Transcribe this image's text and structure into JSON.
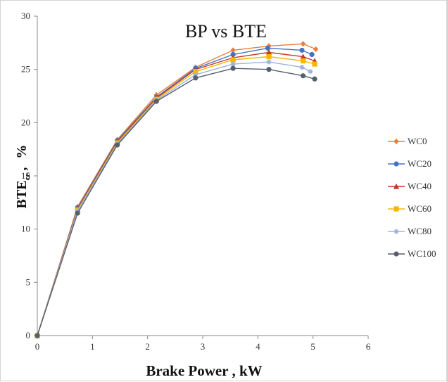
{
  "chart_data": {
    "type": "line",
    "title": "BP vs BTE",
    "xlabel": "Brake Power , kW",
    "ylabel_main": "BTE",
    "ylabel_sub": "ce",
    "ylabel_unit": "%",
    "xlim": [
      0,
      6
    ],
    "ylim": [
      0,
      30
    ],
    "xticks": [
      "0",
      "1",
      "2",
      "3",
      "4",
      "5",
      "6"
    ],
    "yticks": [
      "0",
      "5",
      "10",
      "15",
      "20",
      "25",
      "30"
    ],
    "grid": false,
    "legend_position": "right",
    "series": [
      {
        "name": "WC0",
        "color": "#f07c3a",
        "marker": "diamond",
        "x": [
          0,
          0.73,
          1.45,
          2.16,
          2.87,
          3.55,
          4.2,
          4.82,
          5.05
        ],
        "y": [
          0,
          12.1,
          18.4,
          22.6,
          25.2,
          26.8,
          27.2,
          27.4,
          26.9
        ]
      },
      {
        "name": "WC20",
        "color": "#4472c4",
        "marker": "circle",
        "x": [
          0,
          0.73,
          1.45,
          2.16,
          2.87,
          3.55,
          4.18,
          4.8,
          4.98
        ],
        "y": [
          0,
          12.0,
          18.3,
          22.4,
          25.1,
          26.4,
          27.0,
          26.8,
          26.4
        ]
      },
      {
        "name": "WC40",
        "color": "#c0392b",
        "marker": "triangle",
        "x": [
          0,
          0.73,
          1.45,
          2.16,
          2.87,
          3.55,
          4.2,
          4.82,
          5.03
        ],
        "y": [
          0,
          11.9,
          18.2,
          22.3,
          25.0,
          26.1,
          26.6,
          26.2,
          25.8
        ]
      },
      {
        "name": "WC60",
        "color": "#f5b800",
        "marker": "square",
        "x": [
          0,
          0.73,
          1.45,
          2.16,
          2.87,
          3.55,
          4.2,
          4.82,
          5.03
        ],
        "y": [
          0,
          11.8,
          18.1,
          22.2,
          24.8,
          25.9,
          26.2,
          25.8,
          25.5
        ]
      },
      {
        "name": "WC80",
        "color": "#9db3da",
        "marker": "star",
        "x": [
          0,
          0.73,
          1.45,
          2.16,
          2.87,
          3.55,
          4.2,
          4.8,
          4.95
        ],
        "y": [
          0,
          11.7,
          18.0,
          22.1,
          24.5,
          25.5,
          25.7,
          25.2,
          24.8
        ]
      },
      {
        "name": "WC100",
        "color": "#555f6d",
        "marker": "circle",
        "x": [
          0,
          0.73,
          1.45,
          2.16,
          2.87,
          3.55,
          4.2,
          4.82,
          5.03
        ],
        "y": [
          0,
          11.5,
          17.9,
          22.0,
          24.2,
          25.1,
          25.0,
          24.4,
          24.1
        ]
      }
    ]
  }
}
